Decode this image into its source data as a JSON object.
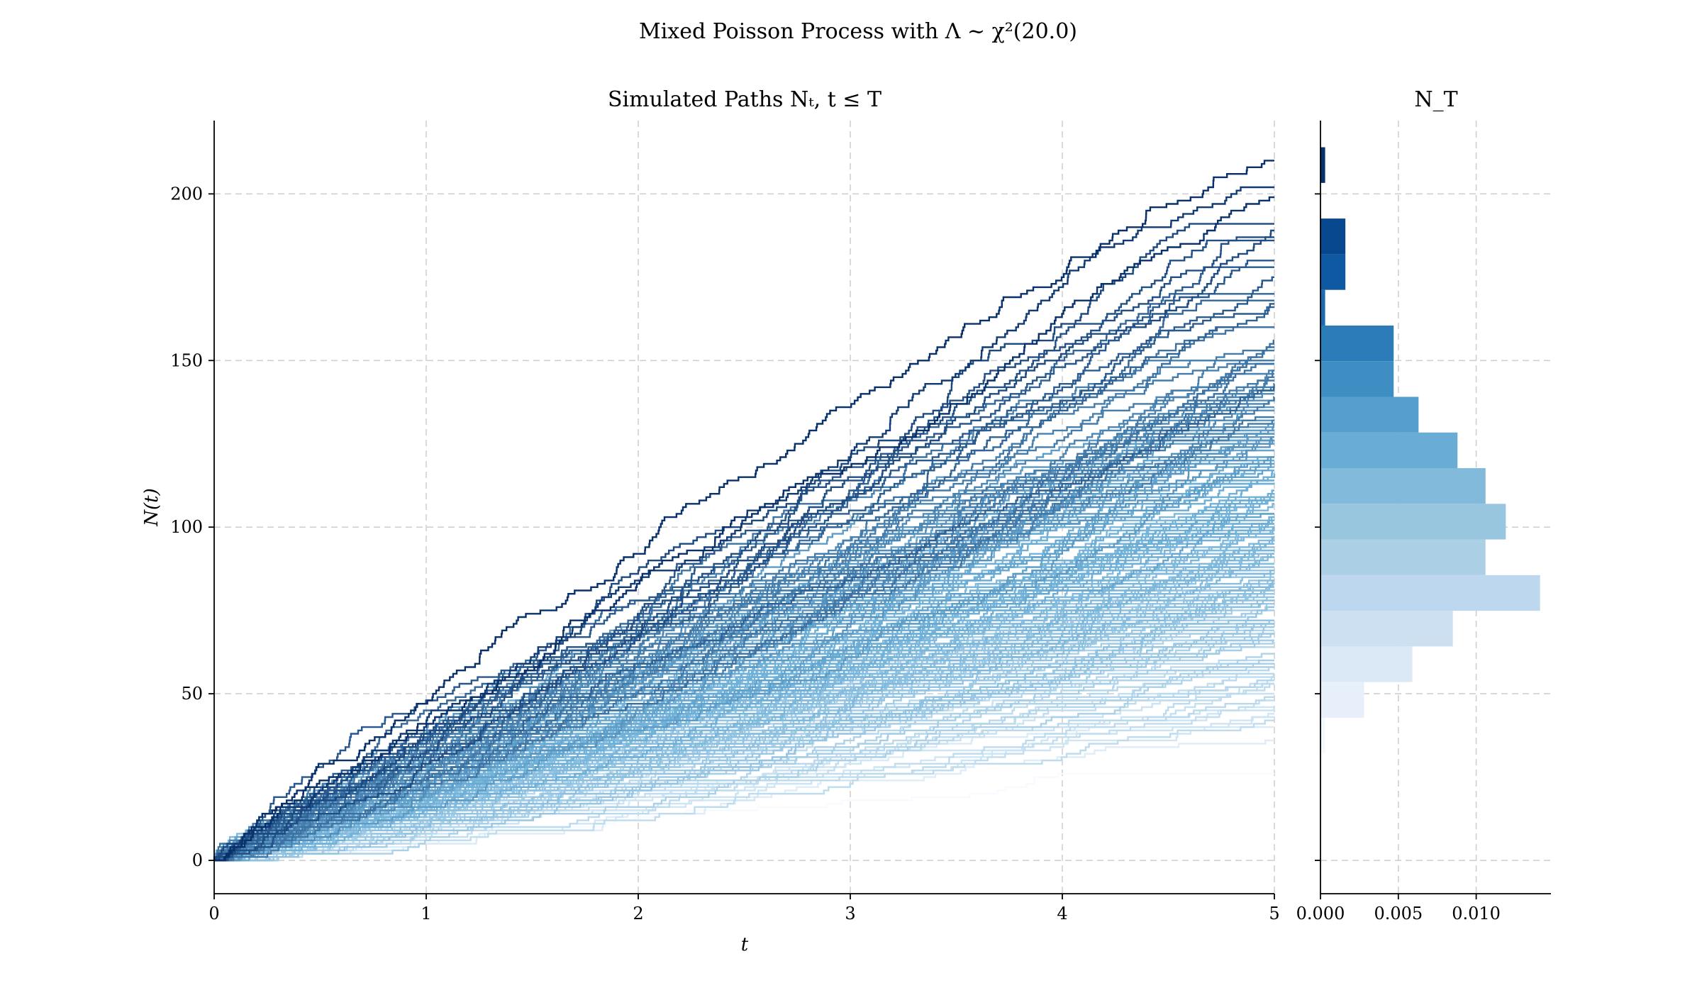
{
  "figure": {
    "suptitle": "Mixed Poisson Process with Λ ~ χ²(20.0)"
  },
  "chart_data": [
    {
      "type": "line",
      "panel": "paths",
      "title": "Simulated Paths Nₜ, t ≤ T",
      "xlabel": "t",
      "ylabel": "N(t)",
      "xlim": [
        0,
        5
      ],
      "ylim": [
        -10,
        222
      ],
      "xticks": [
        0,
        1,
        2,
        3,
        4,
        5
      ],
      "xtick_labels": [
        "0",
        "1",
        "2",
        "3",
        "4",
        "5"
      ],
      "yticks": [
        0,
        50,
        100,
        150,
        200
      ],
      "ytick_labels": [
        "0",
        "50",
        "100",
        "150",
        "200"
      ],
      "grid": true,
      "colormap": "Blues",
      "color_low": "#f7fbff",
      "color_high": "#08306b",
      "n_paths": 200,
      "path_final_values_T5": [
        210,
        202,
        187,
        180,
        176,
        172,
        168,
        160,
        155,
        150,
        145,
        140,
        135,
        130,
        125,
        120,
        110,
        100,
        90,
        80,
        70,
        60,
        50,
        40,
        26
      ],
      "color_note": "paths shaded by final value N_T (darker = larger)"
    },
    {
      "type": "bar",
      "orientation": "horizontal",
      "panel": "histogram",
      "title": "N_T",
      "xlim": [
        0,
        0.0148
      ],
      "xticks": [
        0.0,
        0.005,
        0.01
      ],
      "xtick_labels": [
        "0.000",
        "0.005",
        "0.010"
      ],
      "grid": true,
      "bin_edges": [
        0,
        10.7,
        21.4,
        32.1,
        42.8,
        53.5,
        64.2,
        74.9,
        85.6,
        96.3,
        107,
        117.7,
        128.4,
        139.1,
        149.8,
        160.5,
        171.2,
        181.9,
        192.6,
        203.3,
        214
      ],
      "density": [
        0,
        0,
        0,
        0.0003,
        0.0028,
        0.0059,
        0.0085,
        0.0141,
        0.0106,
        0.0119,
        0.0106,
        0.0088,
        0.0063,
        0.0047,
        0.0047,
        0.0003,
        0.0016,
        0.0016,
        0,
        0.0003
      ],
      "colors": [
        "#f7fbff",
        "#f7fbff",
        "#f7fbff",
        "#f4f9fe",
        "#e7f0fa",
        "#dbe9f6",
        "#cde0f1",
        "#bdd7ee",
        "#abcfe5",
        "#98c6df",
        "#81badb",
        "#69add5",
        "#539ecd",
        "#3e8ec4",
        "#2c7cba",
        "#1c6aaf",
        "#0e59a2",
        "#08488e",
        "#083b7a",
        "#08306b"
      ]
    }
  ]
}
